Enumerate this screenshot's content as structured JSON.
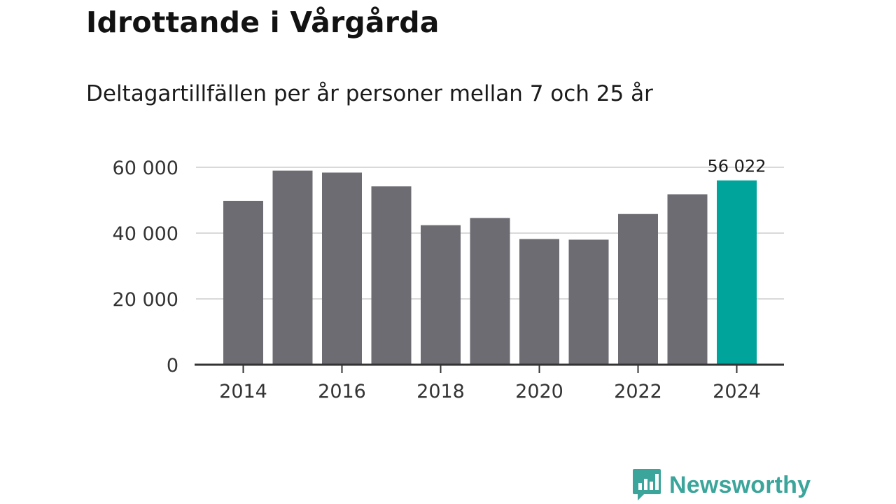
{
  "header": {
    "title": "Idrottande i Vårgårda",
    "subtitle": "Deltagartillfällen per år personer mellan 7 och 25 år"
  },
  "brand": {
    "name": "Newsworthy",
    "logo_icon": "newsworthy-chart-bubble-icon",
    "color": "#3ba59b"
  },
  "colors": {
    "bar": "#6d6c73",
    "highlight": "#00a49a",
    "grid": "#d9d9d9",
    "axis": "#333333",
    "tick_text": "#333333"
  },
  "chart_data": {
    "type": "bar",
    "title": "Idrottande i Vårgårda",
    "subtitle": "Deltagartillfällen per år personer mellan 7 och 25 år",
    "xlabel": "",
    "ylabel": "",
    "categories": [
      "2014",
      "2015",
      "2016",
      "2017",
      "2018",
      "2019",
      "2020",
      "2021",
      "2022",
      "2023",
      "2024"
    ],
    "values": [
      49800,
      59000,
      58400,
      54200,
      42400,
      44600,
      38200,
      38000,
      45800,
      51800,
      56022
    ],
    "highlight_index": 10,
    "data_labels": [
      {
        "index": 10,
        "text": "56 022"
      }
    ],
    "ylim": [
      0,
      60000
    ],
    "yticks": [
      0,
      20000,
      40000,
      60000
    ],
    "ytick_labels": [
      "0",
      "20 000",
      "40 000",
      "60 000"
    ],
    "xtick_labels": [
      "2014",
      "2016",
      "2018",
      "2020",
      "2022",
      "2024"
    ],
    "grid": true
  }
}
